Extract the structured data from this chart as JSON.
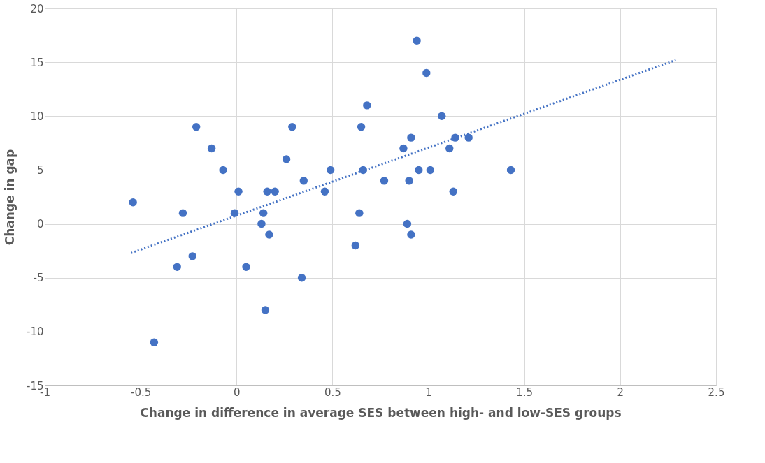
{
  "chart_data": {
    "type": "scatter",
    "xlabel": "Change in difference in average SES between high- and low-SES groups",
    "ylabel": "Change in gap",
    "x": [
      -0.54,
      -0.43,
      -0.31,
      -0.28,
      -0.23,
      -0.21,
      -0.13,
      -0.07,
      -0.01,
      0.01,
      0.05,
      0.13,
      0.14,
      0.15,
      0.16,
      0.17,
      0.2,
      0.26,
      0.29,
      0.34,
      0.35,
      0.46,
      0.49,
      0.62,
      0.64,
      0.65,
      0.66,
      0.68,
      0.77,
      0.87,
      0.89,
      0.9,
      0.91,
      0.91,
      0.94,
      0.95,
      0.99,
      1.01,
      1.07,
      1.11,
      1.13,
      1.14,
      1.21,
      1.43
    ],
    "series": [
      {
        "color": "#4472c4",
        "marker": "circle",
        "values": [
          2,
          -11,
          -4,
          1,
          -3,
          9,
          7,
          5,
          1,
          3,
          -4,
          0,
          1,
          -8,
          3,
          -1,
          3,
          6,
          9,
          -5,
          4,
          3,
          5,
          -2,
          1,
          9,
          5,
          11,
          4,
          7,
          0,
          4,
          8,
          -1,
          17,
          5,
          14,
          5,
          10,
          7,
          3,
          8,
          8,
          5
        ]
      },
      {
        "type": "line",
        "color": "#4472c4",
        "line_style": "dotted",
        "x": [
          -0.55,
          2.29
        ],
        "values": [
          -2.7,
          15.2
        ]
      }
    ],
    "xlim": [
      -1,
      2.5
    ],
    "ylim": [
      -15,
      20
    ],
    "xticks": [
      -1,
      -0.5,
      0,
      0.5,
      1,
      1.5,
      2,
      2.5
    ],
    "yticks": [
      -15,
      -10,
      -5,
      0,
      5,
      10,
      15,
      20
    ],
    "grid": true
  }
}
